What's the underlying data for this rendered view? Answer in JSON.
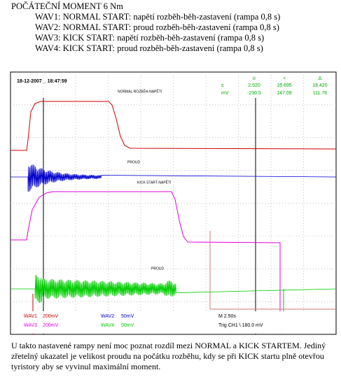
{
  "header": {
    "title": "POČÁTEČNÍ MOMENT 6 Nm",
    "lines": [
      "WAV1: NORMAL START: napětí rozběh-běh-zastavení (rampa 0,8 s)",
      "WAV2: NORMAL START: proud rozběh-běh-zastavení (rampa 0,8 s)",
      "WAV3: KICK START: napětí rozběh-běh-zastavení (rampa 0,8 s)",
      "WAV4: KICK START: proud rozběh-běh-zastavení (rampa 0,8 s)"
    ]
  },
  "scope": {
    "timestamp": "18-12-2007 _ 18:47:59",
    "units": [
      "s",
      "mV"
    ],
    "cursors": [
      {
        "symbol": "o",
        "time": "2.520",
        "level": "-230.5"
      },
      {
        "symbol": "+",
        "time": "16.695",
        "level": "147.09"
      },
      {
        "symbol": "Δ",
        "time": "18.420",
        "level": "111.76"
      }
    ],
    "trace_labels": [
      "NORMAL ROZBĚH-NAPĚTÍ",
      "PROUD",
      "KICK START-NAPĚTÍ",
      "PROUD"
    ],
    "channels": [
      {
        "name": "WAV1",
        "scale": "200mV"
      },
      {
        "name": "WAV2",
        "scale": "50mV"
      },
      {
        "name": "WAV3",
        "scale": "200mV"
      },
      {
        "name": "WAV4",
        "scale": "50mV"
      }
    ],
    "timebase": "M 2.50s",
    "trigger": "Trig CH1 \\ 180.0 mV"
  },
  "footer": {
    "lines": [
      "U takto nastavené rampy není moc poznat rozdíl mezi NORMAL a KICK STARTEM. Jediný",
      "zřetelný ukazatel je velikost proudu na počátku rozběhu, kdy se při KICK startu plně otevřou",
      "tyristory aby se vyvinul maximální moment."
    ]
  }
}
